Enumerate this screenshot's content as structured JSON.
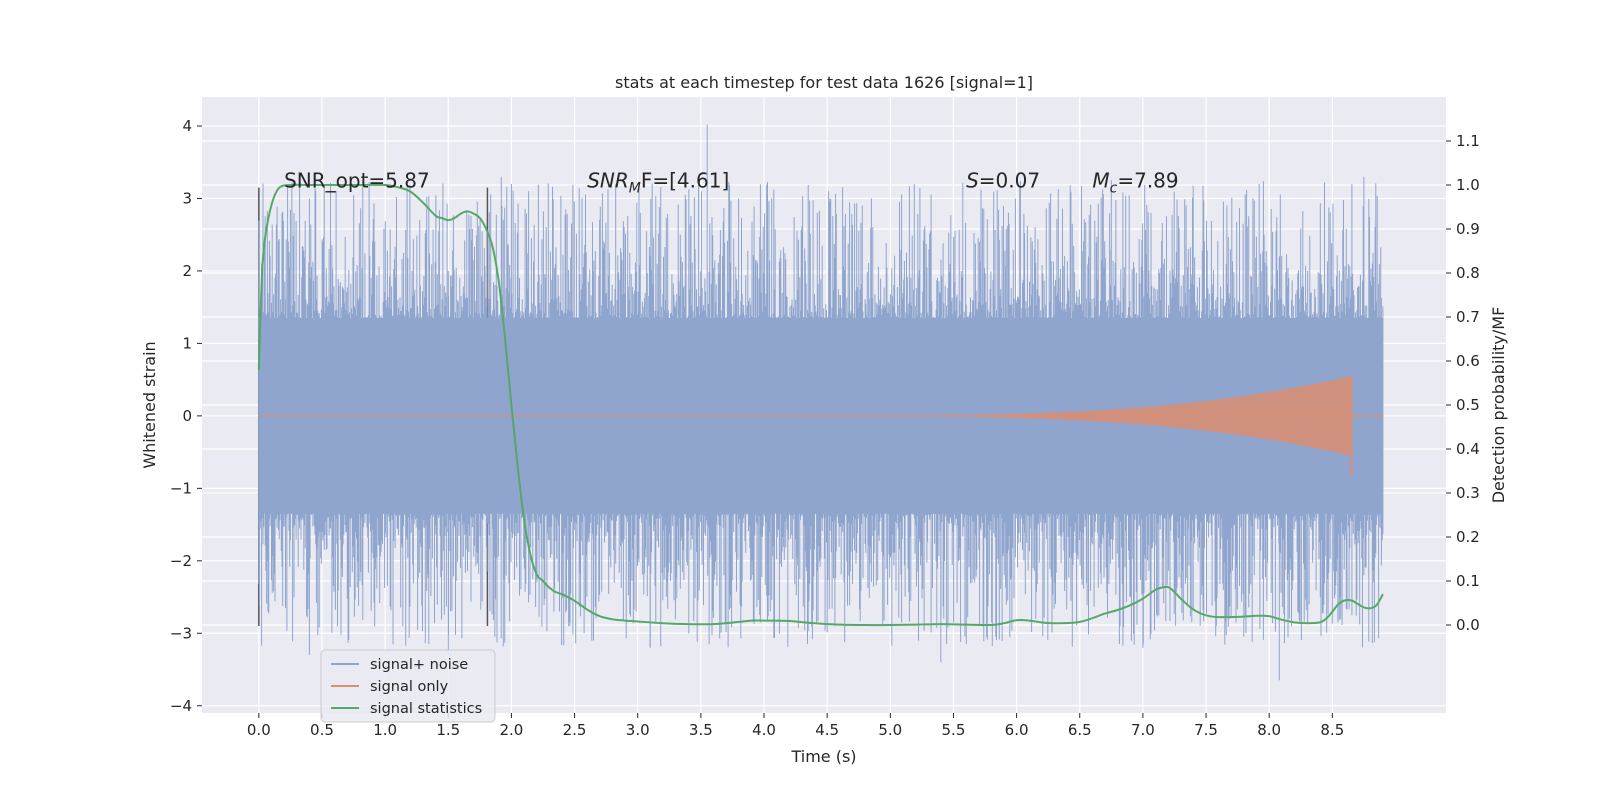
{
  "chart_data": {
    "type": "line",
    "title": "stats at each timestep for test data 1626 [signal=1]",
    "xlabel": "Time (s)",
    "ylabel_left": "Whitened strain",
    "ylabel_right": "Detection probability/MF",
    "xlim": [
      -0.45,
      9.4
    ],
    "ylim_left": [
      -4.1,
      4.4
    ],
    "ylim_right": [
      -0.2,
      1.2
    ],
    "xticks": [
      "0.0",
      "0.5",
      "1.0",
      "1.5",
      "2.0",
      "2.5",
      "3.0",
      "3.5",
      "4.0",
      "4.5",
      "5.0",
      "5.5",
      "6.0",
      "6.5",
      "7.0",
      "7.5",
      "8.0",
      "8.5"
    ],
    "yticks_left": [
      "4",
      "3",
      "2",
      "1",
      "0",
      "−1",
      "−2",
      "−3",
      "−4"
    ],
    "yticks_right": [
      "1.1",
      "1.0",
      "0.9",
      "0.8",
      "0.7",
      "0.6",
      "0.5",
      "0.4",
      "0.3",
      "0.2",
      "0.1",
      "0.0"
    ],
    "grid": true,
    "legend_position": "lower-left",
    "series": [
      {
        "name": "signal+ noise",
        "color": "#8fa5cd",
        "axis": "left",
        "x_range": [
          0.0,
          8.9
        ],
        "envelope": "noise, core band approx ±1.3, peaks to about 4.0 at 3.55 s and down to about -3.6 at 8.1 s"
      },
      {
        "name": "signal only",
        "color": "#dd8d71",
        "axis": "left",
        "x_range": [
          0.0,
          8.9
        ],
        "envelope": "chirp growing in amplitude, peaking near 0.55 at about 8.65 s"
      },
      {
        "name": "signal statistics",
        "color": "#55a868",
        "axis": "right",
        "x": [
          0.0,
          0.03,
          0.08,
          0.15,
          0.25,
          0.4,
          0.6,
          0.8,
          1.0,
          1.1,
          1.2,
          1.3,
          1.4,
          1.45,
          1.5,
          1.55,
          1.6,
          1.65,
          1.7,
          1.75,
          1.8,
          1.85,
          1.9,
          1.95,
          2.0,
          2.05,
          2.1,
          2.15,
          2.2,
          2.25,
          2.3,
          2.35,
          2.4,
          2.5,
          2.6,
          2.7,
          2.8,
          2.9,
          3.0,
          3.2,
          3.4,
          3.6,
          3.8,
          3.9,
          4.0,
          4.2,
          4.4,
          4.6,
          4.8,
          5.0,
          5.2,
          5.4,
          5.6,
          5.8,
          5.9,
          6.0,
          6.1,
          6.2,
          6.3,
          6.5,
          6.7,
          6.8,
          6.9,
          7.0,
          7.1,
          7.15,
          7.2,
          7.25,
          7.3,
          7.4,
          7.5,
          7.6,
          7.8,
          7.9,
          8.0,
          8.1,
          8.2,
          8.3,
          8.4,
          8.45,
          8.5,
          8.55,
          8.6,
          8.65,
          8.7,
          8.75,
          8.8,
          8.85,
          8.9
        ],
        "values": [
          0.58,
          0.82,
          0.93,
          0.99,
          1.0,
          1.0,
          1.0,
          1.0,
          1.0,
          0.995,
          0.985,
          0.96,
          0.93,
          0.925,
          0.92,
          0.925,
          0.935,
          0.94,
          0.935,
          0.925,
          0.9,
          0.86,
          0.78,
          0.65,
          0.5,
          0.36,
          0.24,
          0.16,
          0.115,
          0.1,
          0.085,
          0.075,
          0.07,
          0.055,
          0.035,
          0.02,
          0.013,
          0.01,
          0.008,
          0.004,
          0.002,
          0.002,
          0.007,
          0.01,
          0.01,
          0.009,
          0.004,
          0.001,
          0.0,
          0.0,
          0.001,
          0.002,
          0.001,
          0.0,
          0.004,
          0.011,
          0.01,
          0.006,
          0.004,
          0.007,
          0.026,
          0.034,
          0.045,
          0.06,
          0.08,
          0.085,
          0.086,
          0.075,
          0.06,
          0.035,
          0.022,
          0.018,
          0.019,
          0.021,
          0.02,
          0.012,
          0.006,
          0.004,
          0.006,
          0.014,
          0.03,
          0.048,
          0.056,
          0.056,
          0.048,
          0.04,
          0.038,
          0.045,
          0.07
        ]
      }
    ],
    "vlines": [
      {
        "x": 0.0,
        "y_range": [
          -2.9,
          3.15
        ]
      },
      {
        "x": 1.81,
        "y_range": [
          -2.9,
          3.15
        ]
      }
    ],
    "annotations": [
      {
        "id": "snr_opt",
        "text": "SNR_opt=5.87",
        "x": 0.2,
        "y": 3.15
      },
      {
        "id": "snr_mf",
        "main": "SNR",
        "sub": "M",
        "rest": "F=[4.61]",
        "x": 2.6,
        "y": 3.15
      },
      {
        "id": "s",
        "main": "S",
        "rest": "=0.07",
        "x": 5.6,
        "y": 3.15
      },
      {
        "id": "mc",
        "main": "M",
        "sub": "c",
        "rest": "=7.89",
        "x": 6.6,
        "y": 3.15
      }
    ]
  }
}
